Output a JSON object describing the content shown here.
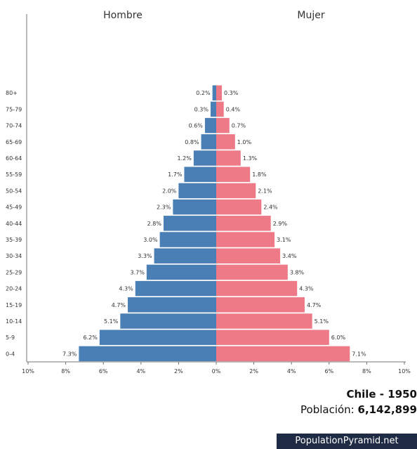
{
  "chart_data": {
    "type": "bar",
    "orientation": "horizontal-pyramid",
    "categories": [
      "0-4",
      "5-9",
      "10-14",
      "15-19",
      "20-24",
      "25-29",
      "30-34",
      "35-39",
      "40-44",
      "45-49",
      "50-54",
      "55-59",
      "60-64",
      "65-69",
      "70-74",
      "75-79",
      "80+"
    ],
    "series": [
      {
        "name": "Hombre",
        "values": [
          7.3,
          6.2,
          5.1,
          4.7,
          4.3,
          3.7,
          3.3,
          3.0,
          2.8,
          2.3,
          2.0,
          1.7,
          1.2,
          0.8,
          0.6,
          0.3,
          0.2
        ],
        "color": "#4a7fb5"
      },
      {
        "name": "Mujer",
        "values": [
          7.1,
          6.0,
          5.1,
          4.7,
          4.3,
          3.8,
          3.4,
          3.1,
          2.9,
          2.4,
          2.1,
          1.8,
          1.3,
          1.0,
          0.7,
          0.4,
          0.3
        ],
        "color": "#ee7a87"
      }
    ],
    "value_labels": {
      "Hombre": [
        "7.3%",
        "6.2%",
        "5.1%",
        "4.7%",
        "4.3%",
        "3.7%",
        "3.3%",
        "3.0%",
        "2.8%",
        "2.3%",
        "2.0%",
        "1.7%",
        "1.2%",
        "0.8%",
        "0.6%",
        "0.3%",
        "0.2%"
      ],
      "Mujer": [
        "7.1%",
        "6.0%",
        "5.1%",
        "4.7%",
        "4.3%",
        "3.8%",
        "3.4%",
        "3.1%",
        "2.9%",
        "2.4%",
        "2.1%",
        "1.8%",
        "1.3%",
        "1.0%",
        "0.7%",
        "0.4%",
        "0.3%"
      ]
    },
    "x_ticks": [
      "10%",
      "8%",
      "6%",
      "4%",
      "2%",
      "0%",
      "2%",
      "4%",
      "6%",
      "8%",
      "10%"
    ],
    "xlim": [
      -10,
      10
    ],
    "grid": false
  },
  "caption": {
    "country_year": "Chile - 1950",
    "population_label": "Población:",
    "population_value": "6,142,899"
  },
  "watermark": "PopulationPyramid.net"
}
